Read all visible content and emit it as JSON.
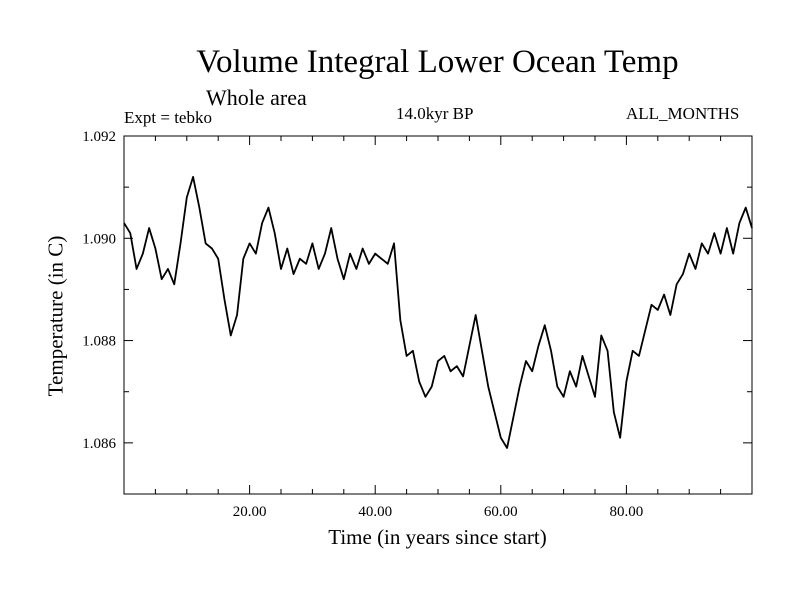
{
  "chart_data": {
    "type": "line",
    "title": "Volume Integral Lower Ocean Temp",
    "subtitle": "Whole area",
    "experiment": "Expt = tebko",
    "period": "14.0kyr BP",
    "months": "ALL_MONTHS",
    "xlabel": "Time (in years since start)",
    "ylabel": "Temperature (in C)",
    "xlim": [
      0,
      100
    ],
    "ylim": [
      1.085,
      1.092
    ],
    "xticks": [
      20,
      40,
      60,
      80
    ],
    "xtick_labels": [
      "20.00",
      "40.00",
      "60.00",
      "80.00"
    ],
    "yticks": [
      1.086,
      1.088,
      1.09,
      1.092
    ],
    "ytick_labels": [
      "1.086",
      "1.088",
      "1.090",
      "1.092"
    ],
    "grid": false,
    "series": [
      {
        "name": "Volume Integral Lower Ocean Temp",
        "color": "#000000",
        "x": [
          0,
          1,
          2,
          3,
          4,
          5,
          6,
          7,
          8,
          9,
          10,
          11,
          12,
          13,
          14,
          15,
          16,
          17,
          18,
          19,
          20,
          21,
          22,
          23,
          24,
          25,
          26,
          27,
          28,
          29,
          30,
          31,
          32,
          33,
          34,
          35,
          36,
          37,
          38,
          39,
          40,
          41,
          42,
          43,
          44,
          45,
          46,
          47,
          48,
          49,
          50,
          51,
          52,
          53,
          54,
          55,
          56,
          57,
          58,
          59,
          60,
          61,
          62,
          63,
          64,
          65,
          66,
          67,
          68,
          69,
          70,
          71,
          72,
          73,
          74,
          75,
          76,
          77,
          78,
          79,
          80,
          81,
          82,
          83,
          84,
          85,
          86,
          87,
          88,
          89,
          90,
          91,
          92,
          93,
          94,
          95,
          96,
          97,
          98,
          99,
          100
        ],
        "values": [
          1.0903,
          1.0901,
          1.0894,
          1.0897,
          1.0902,
          1.0898,
          1.0892,
          1.0894,
          1.0891,
          1.0899,
          1.0908,
          1.0912,
          1.0906,
          1.0899,
          1.0898,
          1.0896,
          1.0888,
          1.0881,
          1.0885,
          1.0896,
          1.0899,
          1.0897,
          1.0903,
          1.0906,
          1.0901,
          1.0894,
          1.0898,
          1.0893,
          1.0896,
          1.0895,
          1.0899,
          1.0894,
          1.0897,
          1.0902,
          1.0896,
          1.0892,
          1.0897,
          1.0894,
          1.0898,
          1.0895,
          1.0897,
          1.0896,
          1.0895,
          1.0899,
          1.0884,
          1.0877,
          1.0878,
          1.0872,
          1.0869,
          1.0871,
          1.0876,
          1.0877,
          1.0874,
          1.0875,
          1.0873,
          1.0879,
          1.0885,
          1.0878,
          1.0871,
          1.0866,
          1.0861,
          1.0859,
          1.0865,
          1.0871,
          1.0876,
          1.0874,
          1.0879,
          1.0883,
          1.0878,
          1.0871,
          1.0869,
          1.0874,
          1.0871,
          1.0877,
          1.0873,
          1.0869,
          1.0881,
          1.0878,
          1.0866,
          1.0861,
          1.0872,
          1.0878,
          1.0877,
          1.0882,
          1.0887,
          1.0886,
          1.0889,
          1.0885,
          1.0891,
          1.0893,
          1.0897,
          1.0894,
          1.0899,
          1.0897,
          1.0901,
          1.0897,
          1.0902,
          1.0897,
          1.0903,
          1.0906,
          1.0902
        ]
      }
    ]
  }
}
